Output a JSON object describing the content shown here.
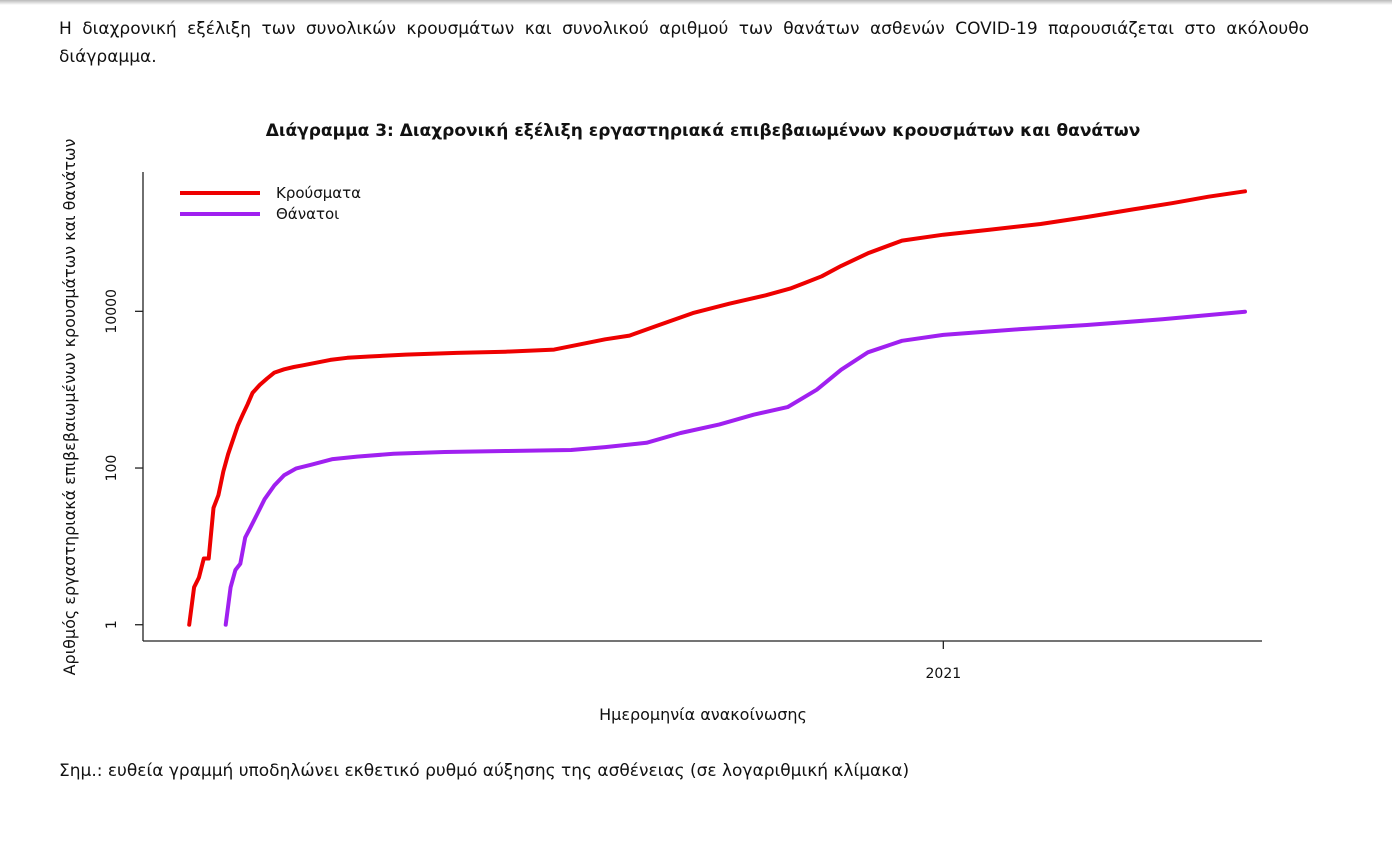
{
  "text": {
    "intro": "Η διαχρονική εξέλιξη των συνολικών κρουσμάτων και συνολικού αριθμού των θανάτων ασθενών COVID-19 παρουσιάζεται στο ακόλουθο διάγραμμα.",
    "note": "Σημ.: ευθεία γραμμή υποδηλώνει εκθετικό ρυθμό αύξησης της ασθένειας (σε λογαριθμική κλίμακα)"
  },
  "chart_data": {
    "type": "line",
    "title": "Διάγραμμα 3: Διαχρονική εξέλιξη εργαστηριακά επιβεβαιωμένων κρουσμάτων και θανάτων",
    "xlabel": "Ημερομηνία ανακοίνωσης",
    "ylabel": "Αριθμός εργαστηριακά επιβεβαιωμένων κρουσμάτων και θανάτων",
    "y_scale": "log10",
    "ylim": [
      0.62,
      600000
    ],
    "yticks": [
      1,
      100,
      10000
    ],
    "ytick_labels": [
      "1",
      "100",
      "10000"
    ],
    "xlim": [
      "2020-02-07",
      "2021-05-12"
    ],
    "xticks": [
      "2021-01-01"
    ],
    "xtick_labels": [
      "2021"
    ],
    "legend_position": "top-left",
    "grid": false,
    "series": [
      {
        "name": "Κρούσματα",
        "color": "#ee0000",
        "x": [
          "2020-02-26",
          "2020-02-28",
          "2020-03-01",
          "2020-03-03",
          "2020-03-05",
          "2020-03-07",
          "2020-03-09",
          "2020-03-11",
          "2020-03-13",
          "2020-03-15",
          "2020-03-17",
          "2020-03-19",
          "2020-03-21",
          "2020-03-23",
          "2020-03-26",
          "2020-03-29",
          "2020-04-01",
          "2020-04-05",
          "2020-04-09",
          "2020-04-13",
          "2020-04-18",
          "2020-04-24",
          "2020-05-01",
          "2020-05-10",
          "2020-05-25",
          "2020-06-15",
          "2020-07-05",
          "2020-07-25",
          "2020-08-05",
          "2020-08-15",
          "2020-08-25",
          "2020-09-05",
          "2020-09-20",
          "2020-10-05",
          "2020-10-20",
          "2020-10-30",
          "2020-11-05",
          "2020-11-12",
          "2020-11-20",
          "2020-12-01",
          "2020-12-15",
          "2021-01-01",
          "2021-01-20",
          "2021-02-10",
          "2021-03-01",
          "2021-03-20",
          "2021-04-05",
          "2021-04-20",
          "2021-05-05"
        ],
        "y": [
          1,
          3,
          4,
          7,
          7,
          31,
          45,
          90,
          150,
          230,
          350,
          480,
          650,
          910,
          1150,
          1390,
          1650,
          1820,
          1950,
          2050,
          2200,
          2400,
          2550,
          2650,
          2800,
          2950,
          3050,
          3250,
          3800,
          4400,
          4900,
          6500,
          9500,
          12500,
          16000,
          19500,
          23000,
          28000,
          38000,
          55000,
          80000,
          95000,
          110000,
          130000,
          160000,
          200000,
          240000,
          290000,
          340000
        ]
      },
      {
        "name": "Θάνατοι",
        "color": "#a020f0",
        "x": [
          "2020-03-12",
          "2020-03-14",
          "2020-03-16",
          "2020-03-18",
          "2020-03-20",
          "2020-03-22",
          "2020-03-25",
          "2020-03-28",
          "2020-04-01",
          "2020-04-05",
          "2020-04-10",
          "2020-04-16",
          "2020-04-25",
          "2020-05-05",
          "2020-05-20",
          "2020-06-10",
          "2020-07-05",
          "2020-08-01",
          "2020-08-15",
          "2020-09-01",
          "2020-09-15",
          "2020-10-01",
          "2020-10-15",
          "2020-10-29",
          "2020-11-10",
          "2020-11-20",
          "2020-12-01",
          "2020-12-15",
          "2021-01-01",
          "2021-02-01",
          "2021-03-01",
          "2021-04-01",
          "2021-05-05"
        ],
        "y": [
          1,
          3,
          5,
          6,
          13,
          17,
          26,
          40,
          60,
          81,
          99,
          110,
          130,
          140,
          152,
          160,
          165,
          170,
          185,
          210,
          280,
          360,
          480,
          600,
          1000,
          1800,
          3000,
          4200,
          5000,
          5900,
          6700,
          7900,
          9900
        ]
      }
    ]
  }
}
